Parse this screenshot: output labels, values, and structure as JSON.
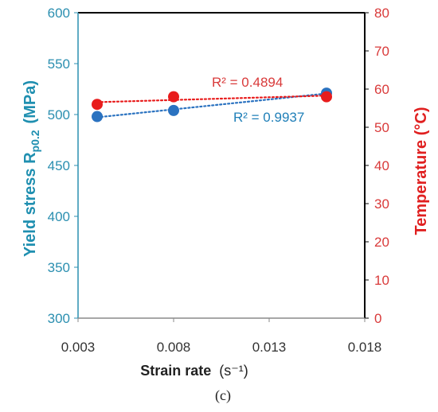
{
  "chart_data": {
    "type": "scatter",
    "title": "",
    "panel_caption": "(c)",
    "xlabel_main": "Strain rate",
    "xlabel_unit": "(s⁻¹)",
    "ylabel_left_main": "Yield stress R",
    "ylabel_left_sub": "p0.2",
    "ylabel_left_unit": "(MPa)",
    "ylabel_right": "Temperature  (°C)",
    "xlim": [
      0.003,
      0.018
    ],
    "ylim_left": [
      300,
      600
    ],
    "ylim_right": [
      0,
      80
    ],
    "x_ticks": [
      "0.003",
      "0.008",
      "0.013",
      "0.018"
    ],
    "y_left_ticks": [
      "300",
      "350",
      "400",
      "450",
      "500",
      "550",
      "600"
    ],
    "y_right_ticks": [
      "0",
      "10",
      "20",
      "30",
      "40",
      "50",
      "60",
      "70",
      "80"
    ],
    "grid": false,
    "series": [
      {
        "axis": "left",
        "color": "#2a72c0",
        "trendline": "linear-dotted",
        "annotation": "R² = 0.9937",
        "points": [
          {
            "x": 0.004,
            "y": 498
          },
          {
            "x": 0.008,
            "y": 504
          },
          {
            "x": 0.016,
            "y": 521
          }
        ]
      },
      {
        "axis": "right",
        "color": "#e81c1c",
        "trendline": "linear-dotted",
        "annotation": "R² = 0.4894",
        "points": [
          {
            "x": 0.004,
            "y": 56
          },
          {
            "x": 0.008,
            "y": 58
          },
          {
            "x": 0.016,
            "y": 58
          }
        ]
      }
    ]
  }
}
